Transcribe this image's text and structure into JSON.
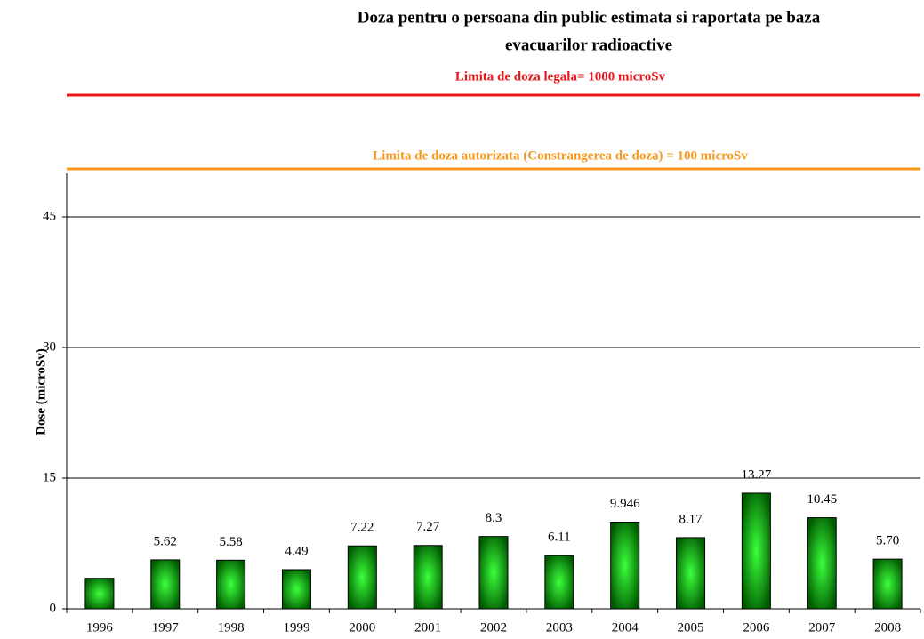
{
  "chart_data": {
    "type": "bar",
    "title": [
      "Doza pentru o persoana din public estimata si raportata pe baza",
      "evacuarilor radioactive"
    ],
    "annotations": [
      {
        "text": "Limita de doza legala= 1000 microSv",
        "color": "#e8141a"
      },
      {
        "text": "Limita de doza autorizata (Constrangerea de doza) = 100 microSv",
        "color": "#f7981d"
      }
    ],
    "y_label": "Dose (microSv)",
    "categories": [
      "1996",
      "1997",
      "1998",
      "1999",
      "2000",
      "2001",
      "2002",
      "2003",
      "2004",
      "2005",
      "2006",
      "2007",
      "2008"
    ],
    "values": [
      3.5,
      5.62,
      5.58,
      4.49,
      7.22,
      7.27,
      8.3,
      6.11,
      9.946,
      8.17,
      13.27,
      10.45,
      5.7
    ],
    "value_labels": [
      null,
      "5.62",
      "5.58",
      "4.49",
      "7.22",
      "7.27",
      "8.3",
      "6.11",
      "9.946",
      "8.17",
      "13.27",
      "10.45",
      "5.70"
    ],
    "color": "#1fbf1f",
    "ylim": [
      0,
      50
    ],
    "yticks": [
      0,
      15,
      30,
      45
    ],
    "grid": true
  }
}
